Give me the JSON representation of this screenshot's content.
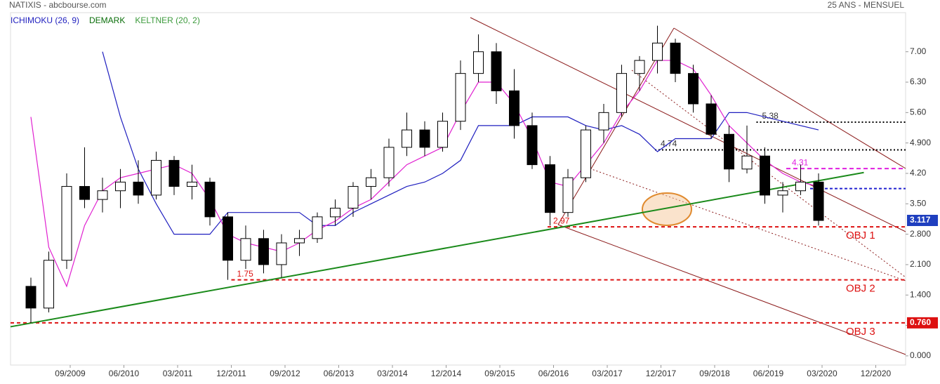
{
  "chart_data": {
    "type": "candlestick",
    "title": "NATIXIS - abcbourse.com",
    "subtitle": "25 ANS - MENSUEL",
    "legend": [
      {
        "text": "ICHIMOKU (26, 9)",
        "color": "#1f1fbf"
      },
      {
        "text": "DEMARK",
        "color": "#0a6e0a"
      },
      {
        "text": "KELTNER (20, 2)",
        "color": "#3c9a3c"
      }
    ],
    "xlim": [
      "2008-11",
      "2021-05"
    ],
    "xticks": [
      {
        "value": "2009-09",
        "label": "09/2009"
      },
      {
        "value": "2010-06",
        "label": "06/2010"
      },
      {
        "value": "2011-03",
        "label": "03/2011"
      },
      {
        "value": "2011-12",
        "label": "12/2011"
      },
      {
        "value": "2012-09",
        "label": "09/2012"
      },
      {
        "value": "2013-06",
        "label": "06/2013"
      },
      {
        "value": "2014-03",
        "label": "03/2014"
      },
      {
        "value": "2014-12",
        "label": "12/2014"
      },
      {
        "value": "2015-09",
        "label": "09/2015"
      },
      {
        "value": "2016-06",
        "label": "06/2016"
      },
      {
        "value": "2017-03",
        "label": "03/2017"
      },
      {
        "value": "2017-12",
        "label": "12/2017"
      },
      {
        "value": "2018-09",
        "label": "09/2018"
      },
      {
        "value": "2019-06",
        "label": "06/2019"
      },
      {
        "value": "2020-03",
        "label": "03/2020"
      },
      {
        "value": "2020-12",
        "label": "12/2020"
      }
    ],
    "ylim": [
      -0.05,
      7.9
    ],
    "yticks": [
      {
        "value": 0,
        "label": "0.000"
      },
      {
        "value": 0.7,
        "label": "0.700"
      },
      {
        "value": 1.4,
        "label": "1.400"
      },
      {
        "value": 2.1,
        "label": "2.100"
      },
      {
        "value": 2.8,
        "label": "2.800"
      },
      {
        "value": 3.5,
        "label": "3.50"
      },
      {
        "value": 4.2,
        "label": "4.20"
      },
      {
        "value": 4.9,
        "label": "4.900"
      },
      {
        "value": 5.6,
        "label": "5.60"
      },
      {
        "value": 6.3,
        "label": "6.30"
      },
      {
        "value": 7,
        "label": "7.00"
      }
    ],
    "candles": {
      "x": [
        "2009-01",
        "2009-04",
        "2009-07",
        "2009-10",
        "2010-01",
        "2010-04",
        "2010-07",
        "2010-10",
        "2011-01",
        "2011-04",
        "2011-07",
        "2011-10",
        "2012-01",
        "2012-04",
        "2012-07",
        "2012-10",
        "2013-01",
        "2013-04",
        "2013-07",
        "2013-10",
        "2014-01",
        "2014-04",
        "2014-07",
        "2014-10",
        "2015-01",
        "2015-04",
        "2015-07",
        "2015-10",
        "2016-01",
        "2016-04",
        "2016-07",
        "2016-10",
        "2017-01",
        "2017-04",
        "2017-07",
        "2017-10",
        "2018-01",
        "2018-04",
        "2018-07",
        "2018-10",
        "2019-01",
        "2019-04",
        "2019-07",
        "2019-10",
        "2020-01"
      ],
      "open": [
        1.6,
        1.1,
        2.2,
        3.9,
        3.6,
        3.8,
        4.0,
        3.7,
        4.5,
        3.9,
        4.0,
        3.2,
        2.2,
        2.7,
        2.1,
        2.6,
        2.7,
        3.2,
        3.4,
        3.9,
        4.1,
        4.8,
        5.2,
        4.8,
        5.4,
        6.5,
        7.0,
        6.1,
        5.3,
        4.4,
        3.3,
        4.1,
        5.2,
        5.6,
        6.5,
        6.8,
        7.2,
        6.5,
        5.8,
        5.1,
        4.3,
        4.6,
        3.7,
        3.8,
        4.0
      ],
      "high": [
        1.8,
        2.4,
        4.2,
        4.8,
        4.1,
        4.3,
        4.5,
        4.7,
        4.6,
        4.4,
        4.1,
        3.3,
        3.0,
        2.9,
        2.8,
        2.9,
        3.3,
        3.6,
        4.0,
        4.3,
        5.0,
        5.6,
        5.4,
        5.6,
        6.8,
        7.4,
        7.2,
        6.6,
        5.6,
        4.6,
        4.3,
        5.3,
        5.8,
        6.7,
        6.9,
        7.6,
        7.3,
        6.7,
        6.0,
        5.3,
        5.3,
        4.8,
        4.0,
        4.4,
        4.2
      ],
      "low": [
        0.76,
        1.0,
        2.0,
        3.4,
        3.3,
        3.4,
        3.5,
        3.6,
        3.7,
        3.6,
        3.0,
        1.75,
        2.0,
        1.9,
        1.8,
        2.3,
        2.6,
        3.0,
        3.2,
        3.6,
        3.9,
        4.6,
        4.6,
        4.7,
        5.2,
        6.3,
        5.8,
        5.0,
        4.3,
        3.0,
        3.2,
        4.0,
        4.9,
        5.5,
        6.1,
        6.5,
        6.3,
        5.6,
        5.0,
        4.0,
        4.2,
        3.5,
        3.3,
        3.7,
        3.0
      ],
      "close": [
        1.1,
        2.2,
        3.9,
        3.6,
        3.8,
        4.0,
        3.7,
        4.5,
        3.9,
        4.0,
        3.2,
        2.2,
        2.7,
        2.1,
        2.6,
        2.7,
        3.2,
        3.4,
        3.9,
        4.1,
        4.8,
        5.2,
        4.8,
        5.4,
        6.5,
        7.0,
        6.1,
        5.3,
        4.4,
        3.3,
        4.1,
        5.2,
        5.6,
        6.5,
        6.8,
        7.2,
        6.5,
        5.8,
        5.1,
        4.3,
        4.6,
        3.7,
        3.8,
        4.0,
        3.117
      ]
    },
    "lines": [
      {
        "color": "#1f1fbf",
        "values": [
          null,
          null,
          null,
          null,
          7.0,
          5.5,
          4.3,
          3.5,
          2.8,
          2.8,
          2.8,
          3.3,
          3.3,
          3.3,
          3.3,
          3.3,
          3.0,
          3.0,
          3.3,
          3.5,
          3.7,
          3.9,
          4.0,
          4.2,
          4.5,
          5.3,
          5.3,
          5.3,
          5.5,
          5.5,
          5.5,
          5.3,
          5.2,
          5.3,
          5.1,
          4.7,
          5.0,
          5.0,
          5.0,
          5.6,
          5.6,
          5.5,
          5.4,
          5.3,
          5.2
        ]
      },
      {
        "color": "#e020d0",
        "values": [
          5.5,
          2.5,
          1.6,
          3.0,
          3.8,
          4.1,
          4.2,
          4.3,
          4.4,
          4.2,
          3.6,
          2.8,
          2.6,
          2.5,
          2.4,
          2.6,
          2.9,
          3.1,
          3.4,
          3.6,
          4.0,
          4.4,
          4.6,
          4.8,
          5.6,
          6.3,
          6.3,
          5.8,
          5.0,
          4.0,
          3.9,
          4.4,
          4.9,
          5.6,
          6.1,
          6.8,
          6.8,
          6.6,
          6.0,
          5.3,
          4.9,
          4.5,
          4.2,
          4.0,
          3.9
        ]
      }
    ],
    "trendline": {
      "color": "#1a8a1a",
      "x": [
        "2008-11",
        "2020-10"
      ],
      "values": [
        0.67,
        4.22
      ]
    },
    "levels": [
      {
        "value": 5.38,
        "color": "#000000",
        "dash": "2,3",
        "start": "2019-04",
        "show_value": true
      },
      {
        "value": 4.74,
        "color": "#000000",
        "dash": "2,3",
        "start": "2017-11",
        "show_value": true
      },
      {
        "value": 4.31,
        "color": "#e020e0",
        "dash": "6,4",
        "start": "2019-09",
        "show_value": true
      },
      {
        "value": 3.85,
        "color": "#2020d0",
        "dash": "4,3",
        "start": "2020-01",
        "show_value": false
      },
      {
        "value": 2.97,
        "color": "#dd1111",
        "dash": "5,4",
        "start": "2016-05",
        "show_value": true,
        "name": "OBJ 1"
      },
      {
        "value": 1.75,
        "color": "#dd1111",
        "dash": "5,4",
        "start": "2011-12",
        "show_value": true,
        "name": "OBJ 2"
      },
      {
        "value": 0.76,
        "value_label": "0.760",
        "color": "#dd1111",
        "dash": "5,4",
        "start": "2008-11",
        "show_value": false,
        "name": "OBJ 3"
      }
    ]
  }
}
